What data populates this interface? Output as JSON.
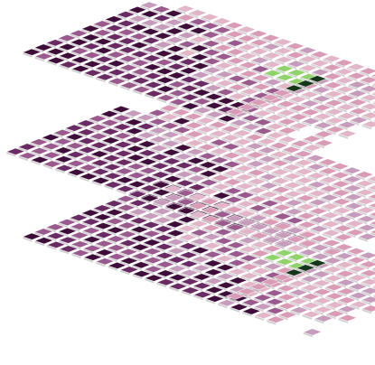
{
  "scene": {
    "description_kind": "isometric-tile-layers",
    "layer_count": 3,
    "palette": {
      "dark_plum": "#3f0d3a",
      "plum": "#6a2a63",
      "mauve": "#9a5a8e",
      "light_mauve": "#c79bbb",
      "pink": "#d99bb6",
      "pale_pink": "#e3b5c8",
      "highlight_green": "#8fd36a",
      "dark_green": "#16361a",
      "background": "#ffffff"
    },
    "layers": [
      {
        "id": "top",
        "green_patch": true,
        "dark_green_patch": true
      },
      {
        "id": "middle",
        "green_patch": false,
        "dark_green_patch": false
      },
      {
        "id": "bottom",
        "green_patch": true,
        "dark_green_patch": true
      }
    ]
  }
}
